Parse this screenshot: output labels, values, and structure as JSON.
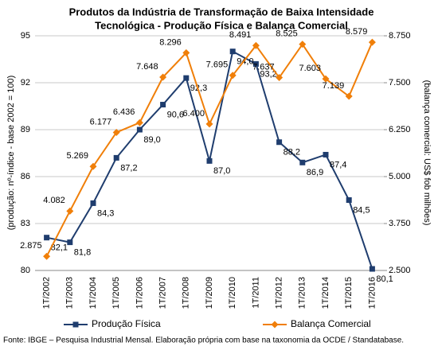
{
  "chart_data": {
    "type": "line",
    "title": [
      "Produtos da Indústria de Transformação de Baixa Intensidade",
      "Tecnológica - Produção Física e Balança Comercial"
    ],
    "y_label": "(produção: nº-índice - base 2002 = 100)",
    "y2_label": "(balança comercial: US$ fob milhões)",
    "categories": [
      "1T/2002",
      "1T/2003",
      "1T/2004",
      "1T/2005",
      "1T/2006",
      "1T/2007",
      "1T/2008",
      "1T/2009",
      "1T/2010",
      "1T/2011",
      "1T/2012",
      "1T/2013",
      "1T/2014",
      "1T/2015",
      "1T/2016"
    ],
    "series": [
      {
        "name": "Produção Física",
        "color": "#1f3d6e",
        "axis": "y",
        "values": [
          82.1,
          81.8,
          84.3,
          87.2,
          89.0,
          90.6,
          92.3,
          87.0,
          94.0,
          93.2,
          88.2,
          86.9,
          87.4,
          84.5,
          80.1
        ],
        "value_labels": [
          "82,1",
          "81,8",
          "84,3",
          "87,2",
          "89,0",
          "90,6",
          "92,3",
          "87,0",
          "94,0",
          "93,2",
          "88,2",
          "86,9",
          "87,4",
          "84,5",
          "80,1"
        ]
      },
      {
        "name": "Balança Comercial",
        "color": "#f07f09",
        "axis": "y2",
        "values": [
          2875,
          4082,
          5269,
          6177,
          6436,
          7648,
          8296,
          6400,
          7695,
          8491,
          7637,
          8525,
          7603,
          7139,
          8579
        ],
        "value_labels": [
          "2.875",
          "4.082",
          "5.269",
          "6.177",
          "6.436",
          "7.648",
          "8.296",
          "6.400",
          "7.695",
          "8.491",
          "7.637",
          "8.525",
          "7.603",
          "7.139",
          "8.579"
        ]
      }
    ],
    "ylim": [
      80,
      95
    ],
    "yticks": [
      80,
      83,
      86,
      89,
      92,
      95
    ],
    "y2lim": [
      2500,
      8750
    ],
    "y2ticks": [
      {
        "value": 2500,
        "label": "2.500"
      },
      {
        "value": 3750,
        "label": "3.750"
      },
      {
        "value": 5000,
        "label": "5.000"
      },
      {
        "value": 6250,
        "label": "6.250"
      },
      {
        "value": 7500,
        "label": "7.500"
      },
      {
        "value": 8750,
        "label": "8.750"
      }
    ],
    "grid": true,
    "source": "Fonte: IBGE – Pesquisa Industrial Mensal. Elaboração própria com base na taxonomia da OCDE / Standatabase."
  }
}
